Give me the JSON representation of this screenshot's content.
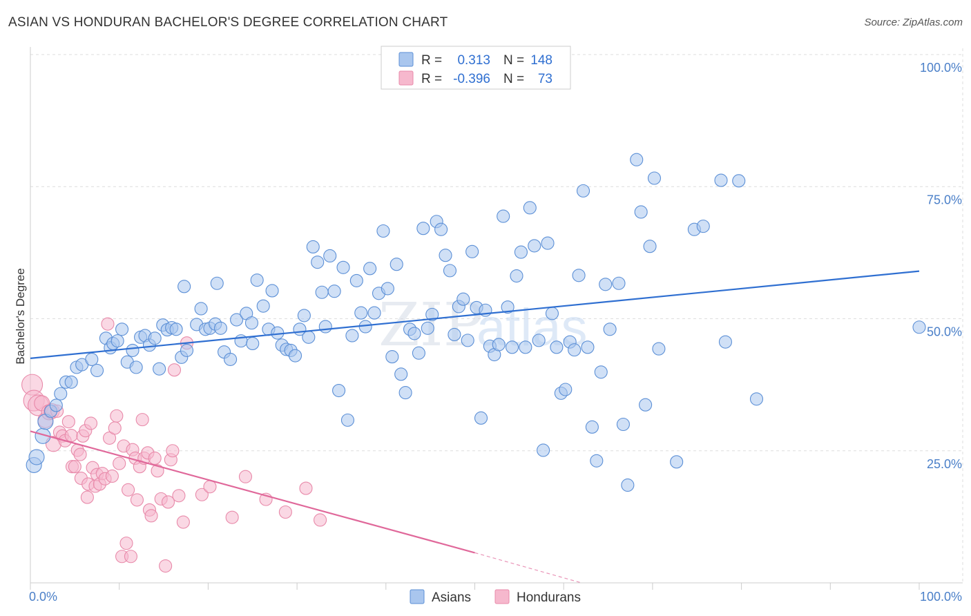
{
  "header": {
    "title": "ASIAN VS HONDURAN BACHELOR'S DEGREE CORRELATION CHART",
    "source": "Source: ZipAtlas.com"
  },
  "watermark": {
    "part1": "ZIP",
    "part2": "atlas"
  },
  "legend": {
    "rows": [
      {
        "r_label": "R =",
        "r_value": "0.313",
        "n_label": "N =",
        "n_value": "148"
      },
      {
        "r_label": "R =",
        "r_value": "-0.396",
        "n_label": "N =",
        "n_value": "73"
      }
    ]
  },
  "bottom_legend": [
    {
      "label": "Asians"
    },
    {
      "label": "Hondurans"
    }
  ],
  "colors": {
    "asian_fill": "#a9c6ee",
    "asian_stroke": "#5b8fd6",
    "asian_line": "#2f6fd1",
    "honduran_fill": "#f6b8cd",
    "honduran_stroke": "#e889a9",
    "honduran_line": "#e0689a",
    "axis_tick": "#4a7fc8",
    "grid": "#dddddd"
  },
  "chart_data": {
    "type": "scatter",
    "title": "ASIAN VS HONDURAN BACHELOR'S DEGREE CORRELATION CHART",
    "xlabel": "",
    "ylabel": "Bachelor's Degree",
    "xlim": [
      0,
      100
    ],
    "ylim": [
      0,
      100
    ],
    "x_tick_labels": [
      "0.0%",
      "100.0%"
    ],
    "y_tick_labels": [
      "25.0%",
      "50.0%",
      "75.0%",
      "100.0%"
    ],
    "y_ticks": [
      25,
      50,
      75,
      100
    ],
    "grid": true,
    "legend_position": "top-center",
    "series": [
      {
        "name": "Asians",
        "r": 0.313,
        "n": 148,
        "trend": {
          "x": [
            0,
            100
          ],
          "y": [
            42.5,
            59
          ]
        },
        "points": [
          [
            0.4,
            22.3
          ],
          [
            0.7,
            23.8
          ],
          [
            1.4,
            27.8
          ],
          [
            1.7,
            30.5
          ],
          [
            2.3,
            32.5
          ],
          [
            2.9,
            33.6
          ],
          [
            3.4,
            35.8
          ],
          [
            4.0,
            38.0
          ],
          [
            4.6,
            38.0
          ],
          [
            5.2,
            40.8
          ],
          [
            5.8,
            41.3
          ],
          [
            6.9,
            42.3
          ],
          [
            7.5,
            40.2
          ],
          [
            8.5,
            46.3
          ],
          [
            9.0,
            44.5
          ],
          [
            9.3,
            45.3
          ],
          [
            9.8,
            45.8
          ],
          [
            10.3,
            48.0
          ],
          [
            10.9,
            41.8
          ],
          [
            11.5,
            44.0
          ],
          [
            11.9,
            40.8
          ],
          [
            12.4,
            46.5
          ],
          [
            12.9,
            46.8
          ],
          [
            13.4,
            45.0
          ],
          [
            14.0,
            46.3
          ],
          [
            14.5,
            40.5
          ],
          [
            14.9,
            48.8
          ],
          [
            15.4,
            47.9
          ],
          [
            15.9,
            48.3
          ],
          [
            16.4,
            48.0
          ],
          [
            17.0,
            42.7
          ],
          [
            17.6,
            44.0
          ],
          [
            17.3,
            56.1
          ],
          [
            18.7,
            48.9
          ],
          [
            19.2,
            51.9
          ],
          [
            19.7,
            48.0
          ],
          [
            20.2,
            48.2
          ],
          [
            20.8,
            49.0
          ],
          [
            21.4,
            48.2
          ],
          [
            21.0,
            56.7
          ],
          [
            21.8,
            43.7
          ],
          [
            22.5,
            42.3
          ],
          [
            23.2,
            49.8
          ],
          [
            23.7,
            45.8
          ],
          [
            24.3,
            51.0
          ],
          [
            24.9,
            49.2
          ],
          [
            25.5,
            57.3
          ],
          [
            25.0,
            45.3
          ],
          [
            26.2,
            52.4
          ],
          [
            26.8,
            48.0
          ],
          [
            27.2,
            55.3
          ],
          [
            27.8,
            47.3
          ],
          [
            28.3,
            45.0
          ],
          [
            28.8,
            44.2
          ],
          [
            29.3,
            44.0
          ],
          [
            29.8,
            43.0
          ],
          [
            30.3,
            48.0
          ],
          [
            30.8,
            50.6
          ],
          [
            31.3,
            46.5
          ],
          [
            31.8,
            63.6
          ],
          [
            32.3,
            60.7
          ],
          [
            32.8,
            55.0
          ],
          [
            33.2,
            48.5
          ],
          [
            33.7,
            61.9
          ],
          [
            34.2,
            55.2
          ],
          [
            34.7,
            36.4
          ],
          [
            35.2,
            59.7
          ],
          [
            35.7,
            30.8
          ],
          [
            36.2,
            46.8
          ],
          [
            36.7,
            57.2
          ],
          [
            37.2,
            51.1
          ],
          [
            37.7,
            48.5
          ],
          [
            38.2,
            59.5
          ],
          [
            38.7,
            51.1
          ],
          [
            39.2,
            54.8
          ],
          [
            39.7,
            66.6
          ],
          [
            40.2,
            55.7
          ],
          [
            40.7,
            42.8
          ],
          [
            41.2,
            60.3
          ],
          [
            41.7,
            39.5
          ],
          [
            42.2,
            36.0
          ],
          [
            42.7,
            48.0
          ],
          [
            43.2,
            47.2
          ],
          [
            43.7,
            43.5
          ],
          [
            44.2,
            67.1
          ],
          [
            44.7,
            48.2
          ],
          [
            45.2,
            50.8
          ],
          [
            45.7,
            68.4
          ],
          [
            46.2,
            66.9
          ],
          [
            46.7,
            62.0
          ],
          [
            47.2,
            59.1
          ],
          [
            47.7,
            47.0
          ],
          [
            48.2,
            52.3
          ],
          [
            48.7,
            53.7
          ],
          [
            49.2,
            45.9
          ],
          [
            49.7,
            62.7
          ],
          [
            50.2,
            52.1
          ],
          [
            50.7,
            31.2
          ],
          [
            51.2,
            51.6
          ],
          [
            51.7,
            44.8
          ],
          [
            52.2,
            43.2
          ],
          [
            52.7,
            45.1
          ],
          [
            53.2,
            69.4
          ],
          [
            53.7,
            52.2
          ],
          [
            54.2,
            44.6
          ],
          [
            54.7,
            58.1
          ],
          [
            55.2,
            62.6
          ],
          [
            55.7,
            44.6
          ],
          [
            56.2,
            71.0
          ],
          [
            56.7,
            63.8
          ],
          [
            57.2,
            45.9
          ],
          [
            57.7,
            25.1
          ],
          [
            58.2,
            64.3
          ],
          [
            58.7,
            51.0
          ],
          [
            59.2,
            44.6
          ],
          [
            59.7,
            35.9
          ],
          [
            60.2,
            36.6
          ],
          [
            60.7,
            45.6
          ],
          [
            61.2,
            44.1
          ],
          [
            61.7,
            58.2
          ],
          [
            62.2,
            74.2
          ],
          [
            62.7,
            44.6
          ],
          [
            63.2,
            29.5
          ],
          [
            63.7,
            23.1
          ],
          [
            64.2,
            39.9
          ],
          [
            64.7,
            56.5
          ],
          [
            65.2,
            48.0
          ],
          [
            66.2,
            56.7
          ],
          [
            66.7,
            30.0
          ],
          [
            67.2,
            18.5
          ],
          [
            68.2,
            80.1
          ],
          [
            68.7,
            70.2
          ],
          [
            69.2,
            33.7
          ],
          [
            69.7,
            63.7
          ],
          [
            70.2,
            76.6
          ],
          [
            70.7,
            44.3
          ],
          [
            72.7,
            22.9
          ],
          [
            74.7,
            66.9
          ],
          [
            75.7,
            67.5
          ],
          [
            77.7,
            76.2
          ],
          [
            78.2,
            45.6
          ],
          [
            79.7,
            76.1
          ],
          [
            81.7,
            34.8
          ],
          [
            100.0,
            48.4
          ]
        ]
      },
      {
        "name": "Hondurans",
        "r": -0.396,
        "n": 73,
        "trend": {
          "x": [
            0,
            50
          ],
          "y": [
            28.7,
            5.7
          ]
        },
        "trend_dashed": {
          "x": [
            50,
            62
          ],
          "y": [
            5.7,
            0
          ]
        },
        "points": [
          [
            0.2,
            37.5
          ],
          [
            0.4,
            34.5
          ],
          [
            0.9,
            33.6
          ],
          [
            1.3,
            34.0
          ],
          [
            1.7,
            30.8
          ],
          [
            2.1,
            32.3
          ],
          [
            2.4,
            32.5
          ],
          [
            2.6,
            26.3
          ],
          [
            3.0,
            32.5
          ],
          [
            3.3,
            28.5
          ],
          [
            3.6,
            27.8
          ],
          [
            3.9,
            26.9
          ],
          [
            4.3,
            30.5
          ],
          [
            4.6,
            27.9
          ],
          [
            4.7,
            22.0
          ],
          [
            5.0,
            22.0
          ],
          [
            5.3,
            25.1
          ],
          [
            5.6,
            24.3
          ],
          [
            5.7,
            19.8
          ],
          [
            5.9,
            27.8
          ],
          [
            6.2,
            28.8
          ],
          [
            6.4,
            16.2
          ],
          [
            6.5,
            18.7
          ],
          [
            6.8,
            30.2
          ],
          [
            7.0,
            21.8
          ],
          [
            7.3,
            18.3
          ],
          [
            7.5,
            20.5
          ],
          [
            7.8,
            18.7
          ],
          [
            8.1,
            20.7
          ],
          [
            8.4,
            19.7
          ],
          [
            8.7,
            49.0
          ],
          [
            8.9,
            27.4
          ],
          [
            9.2,
            20.2
          ],
          [
            9.5,
            29.3
          ],
          [
            9.7,
            31.6
          ],
          [
            10.0,
            22.6
          ],
          [
            10.3,
            5.0
          ],
          [
            10.5,
            25.9
          ],
          [
            10.8,
            7.5
          ],
          [
            11.0,
            17.6
          ],
          [
            11.3,
            5.0
          ],
          [
            11.5,
            25.2
          ],
          [
            11.8,
            23.6
          ],
          [
            12.0,
            15.7
          ],
          [
            12.3,
            22.0
          ],
          [
            12.6,
            30.9
          ],
          [
            12.8,
            23.6
          ],
          [
            13.2,
            24.6
          ],
          [
            13.4,
            13.8
          ],
          [
            13.6,
            12.7
          ],
          [
            14.0,
            23.6
          ],
          [
            14.3,
            21.2
          ],
          [
            14.7,
            15.9
          ],
          [
            15.2,
            3.2
          ],
          [
            15.5,
            15.3
          ],
          [
            15.8,
            23.3
          ],
          [
            16.0,
            25.0
          ],
          [
            16.2,
            40.3
          ],
          [
            16.7,
            16.5
          ],
          [
            17.2,
            11.5
          ],
          [
            17.6,
            45.4
          ],
          [
            19.3,
            16.7
          ],
          [
            20.2,
            18.2
          ],
          [
            22.7,
            12.4
          ],
          [
            24.2,
            20.1
          ],
          [
            26.5,
            15.8
          ],
          [
            28.7,
            13.4
          ],
          [
            31.0,
            17.9
          ],
          [
            32.6,
            11.9
          ]
        ]
      }
    ]
  }
}
